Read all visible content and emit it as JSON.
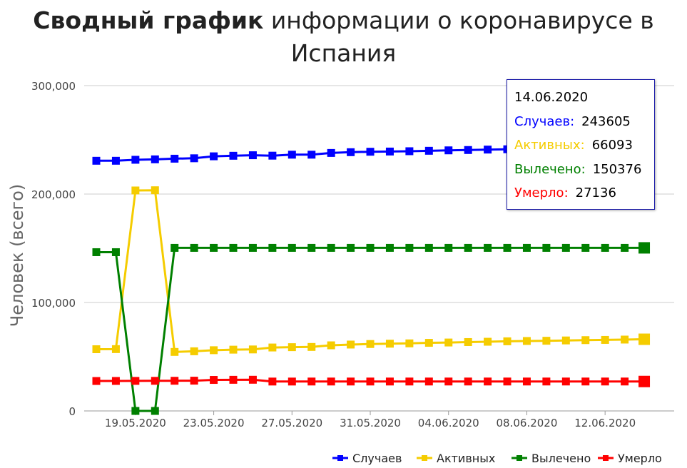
{
  "title": {
    "bold": "Сводный график",
    "rest_line1": " информации о коронавирусе в",
    "line2": "Испания"
  },
  "colors": {
    "cases": "#0000ff",
    "active": "#f5cc00",
    "recovered": "#008000",
    "deaths": "#ff0000",
    "grid": "#cccccc",
    "axis_text": "#444444"
  },
  "tooltip": {
    "date": "14.06.2020",
    "rows": [
      {
        "label": "Случаев:",
        "value": "243605",
        "color": "#0000ff"
      },
      {
        "label": "Активных:",
        "value": "66093",
        "color": "#f5cc00"
      },
      {
        "label": "Вылечено:",
        "value": "150376",
        "color": "#008000"
      },
      {
        "label": "Умерло:",
        "value": "27136",
        "color": "#ff0000"
      }
    ]
  },
  "chart_data": {
    "type": "line",
    "ylabel": "Человек (всего)",
    "ylim": [
      0,
      300000
    ],
    "yticks": [
      0,
      100000,
      200000,
      300000
    ],
    "ytick_labels": [
      "0",
      "100,000",
      "200,000",
      "300,000"
    ],
    "grid": true,
    "legend_position": "bottom-right",
    "xtick_labels": [
      "19.05.2020",
      "23.05.2020",
      "27.05.2020",
      "31.05.2020",
      "04.06.2020",
      "08.06.2020",
      "12.06.2020"
    ],
    "x": [
      "17.05.2020",
      "18.05.2020",
      "19.05.2020",
      "20.05.2020",
      "21.05.2020",
      "22.05.2020",
      "23.05.2020",
      "24.05.2020",
      "25.05.2020",
      "26.05.2020",
      "27.05.2020",
      "28.05.2020",
      "29.05.2020",
      "30.05.2020",
      "31.05.2020",
      "01.06.2020",
      "02.06.2020",
      "03.06.2020",
      "04.06.2020",
      "05.06.2020",
      "06.06.2020",
      "07.06.2020",
      "08.06.2020",
      "09.06.2020",
      "10.06.2020",
      "11.06.2020",
      "12.06.2020",
      "13.06.2020",
      "14.06.2020"
    ],
    "series": [
      {
        "name": "Случаев",
        "color": "#0000ff",
        "values": [
          230700,
          230700,
          231600,
          232000,
          232600,
          233000,
          234800,
          235300,
          235800,
          235400,
          236300,
          236300,
          237900,
          238600,
          239000,
          239200,
          239500,
          239900,
          240300,
          240600,
          241000,
          241300,
          241500,
          241700,
          242100,
          242300,
          242700,
          243200,
          243605
        ]
      },
      {
        "name": "Активных",
        "color": "#f5cc00",
        "values": [
          56900,
          57000,
          203300,
          203500,
          54400,
          55000,
          56000,
          56500,
          56700,
          58500,
          58800,
          59000,
          60500,
          61200,
          61700,
          62000,
          62300,
          62800,
          63100,
          63500,
          63800,
          64200,
          64500,
          64700,
          65000,
          65300,
          65500,
          65800,
          66093
        ]
      },
      {
        "name": "Вылечено",
        "color": "#008000",
        "values": [
          146400,
          146400,
          0,
          0,
          150376,
          150376,
          150376,
          150376,
          150376,
          150376,
          150376,
          150376,
          150376,
          150376,
          150376,
          150376,
          150376,
          150376,
          150376,
          150376,
          150376,
          150376,
          150376,
          150376,
          150376,
          150376,
          150376,
          150376,
          150376
        ]
      },
      {
        "name": "Умерло",
        "color": "#ff0000",
        "values": [
          27600,
          27650,
          27700,
          27750,
          27800,
          27900,
          28600,
          28700,
          28750,
          27100,
          27100,
          27120,
          27120,
          27120,
          27120,
          27120,
          27125,
          27125,
          27128,
          27130,
          27130,
          27133,
          27133,
          27134,
          27135,
          27135,
          27136,
          27136,
          27136
        ]
      }
    ]
  }
}
